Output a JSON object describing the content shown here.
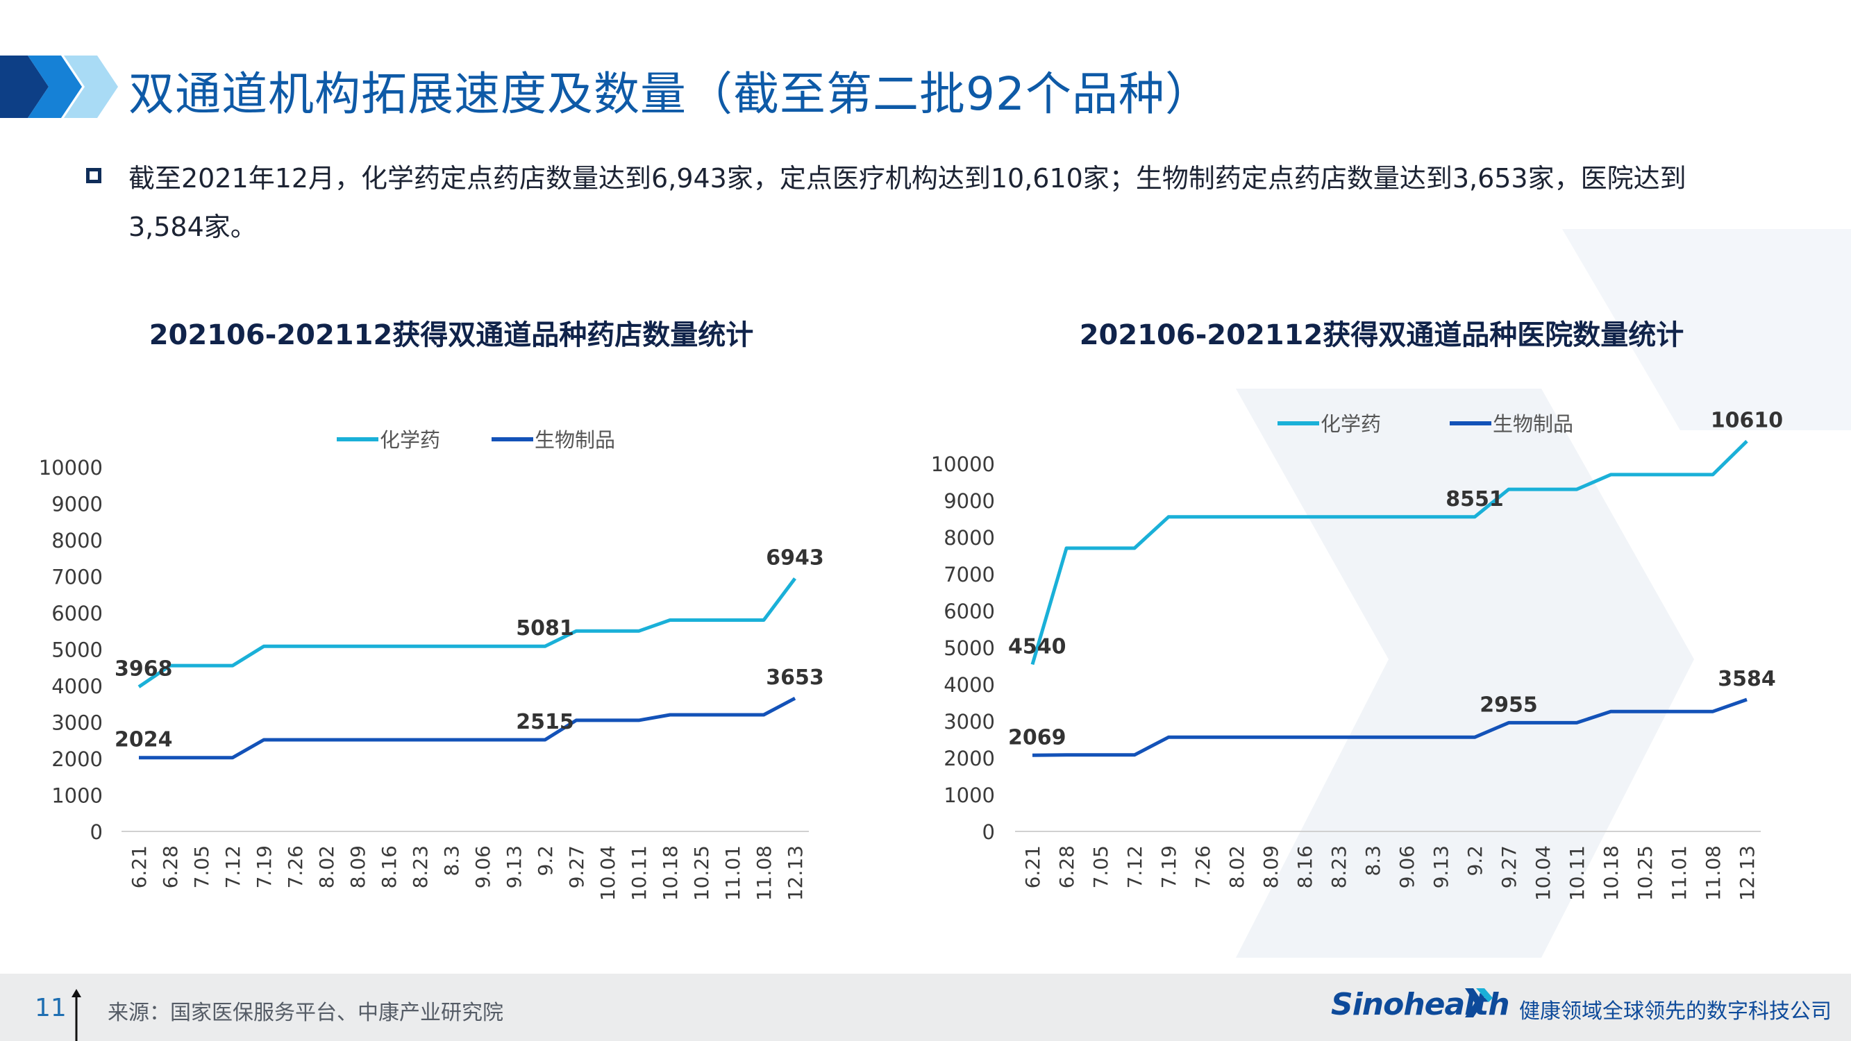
{
  "page_title": "双通道机构拓展速度及数量（截至第二批92个品种）",
  "bullet_text": "截至2021年12月，化学药定点药店数量达到6,943家，定点医疗机构达到10,610家；生物制药定点药店数量达到3,653家，医院达到3,584家。",
  "footer": {
    "page_number": "11",
    "source": "来源：国家医保服务平台、中康产业研究院",
    "logo": "Sinohealth",
    "slogan": "健康领域全球领先的数字科技公司"
  },
  "colors": {
    "title": "#0e5aa7",
    "series_chem": "#1ab0d8",
    "series_bio": "#1352b8",
    "axis_text": "#3a3a3a",
    "label_text": "#333333",
    "footer_bg": "#ebeced"
  },
  "chart_data": [
    {
      "type": "line",
      "title": "202106-202112获得双通道品种药店数量统计",
      "x": [
        "6.21",
        "6.28",
        "7.05",
        "7.12",
        "7.19",
        "7.26",
        "8.02",
        "8.09",
        "8.16",
        "8.23",
        "8.3",
        "9.06",
        "9.13",
        "9.2",
        "9.27",
        "10.04",
        "10.11",
        "10.18",
        "10.25",
        "11.01",
        "11.08",
        "12.13"
      ],
      "yticks": [
        0,
        1000,
        2000,
        3000,
        4000,
        5000,
        6000,
        7000,
        8000,
        9000,
        10000
      ],
      "ylim": [
        0,
        10000
      ],
      "legend_position": "top",
      "grid": false,
      "series": [
        {
          "name": "化学药",
          "values": [
            3968,
            4550,
            4550,
            4550,
            5081,
            5081,
            5081,
            5081,
            5081,
            5081,
            5081,
            5081,
            5081,
            5081,
            5500,
            5500,
            5500,
            5800,
            5800,
            5800,
            5800,
            6943
          ]
        },
        {
          "name": "生物制品",
          "values": [
            2024,
            2024,
            2024,
            2024,
            2515,
            2515,
            2515,
            2515,
            2515,
            2515,
            2515,
            2515,
            2515,
            2515,
            3050,
            3050,
            3050,
            3200,
            3200,
            3200,
            3200,
            3653
          ]
        }
      ],
      "data_labels": [
        {
          "series": 0,
          "index": 0,
          "text": "3968"
        },
        {
          "series": 0,
          "index": 13,
          "text": "5081"
        },
        {
          "series": 0,
          "index": 21,
          "text": "6943"
        },
        {
          "series": 1,
          "index": 0,
          "text": "2024"
        },
        {
          "series": 1,
          "index": 13,
          "text": "2515"
        },
        {
          "series": 1,
          "index": 21,
          "text": "3653"
        }
      ]
    },
    {
      "type": "line",
      "title": "202106-202112获得双通道品种医院数量统计",
      "x": [
        "6.21",
        "6.28",
        "7.05",
        "7.12",
        "7.19",
        "7.26",
        "8.02",
        "8.09",
        "8.16",
        "8.23",
        "8.3",
        "9.06",
        "9.13",
        "9.2",
        "9.27",
        "10.04",
        "10.11",
        "10.18",
        "10.25",
        "11.01",
        "11.08",
        "12.13"
      ],
      "yticks": [
        0,
        1000,
        2000,
        3000,
        4000,
        5000,
        6000,
        7000,
        8000,
        9000,
        10000
      ],
      "ylim": [
        0,
        10000
      ],
      "legend_position": "top",
      "grid": false,
      "series": [
        {
          "name": "化学药",
          "values": [
            4540,
            7700,
            7700,
            7700,
            8551,
            8551,
            8551,
            8551,
            8551,
            8551,
            8551,
            8551,
            8551,
            8551,
            9300,
            9300,
            9300,
            9700,
            9700,
            9700,
            9700,
            10610
          ]
        },
        {
          "name": "生物制品",
          "values": [
            2069,
            2080,
            2080,
            2080,
            2560,
            2560,
            2560,
            2560,
            2560,
            2560,
            2560,
            2560,
            2560,
            2560,
            2955,
            2955,
            2955,
            3260,
            3260,
            3260,
            3260,
            3584
          ]
        }
      ],
      "data_labels": [
        {
          "series": 0,
          "index": 0,
          "text": "4540"
        },
        {
          "series": 0,
          "index": 13,
          "text": "8551"
        },
        {
          "series": 0,
          "index": 21,
          "text": "10610"
        },
        {
          "series": 1,
          "index": 0,
          "text": "2069"
        },
        {
          "series": 1,
          "index": 14,
          "text": "2955"
        },
        {
          "series": 1,
          "index": 21,
          "text": "3584"
        }
      ]
    }
  ]
}
